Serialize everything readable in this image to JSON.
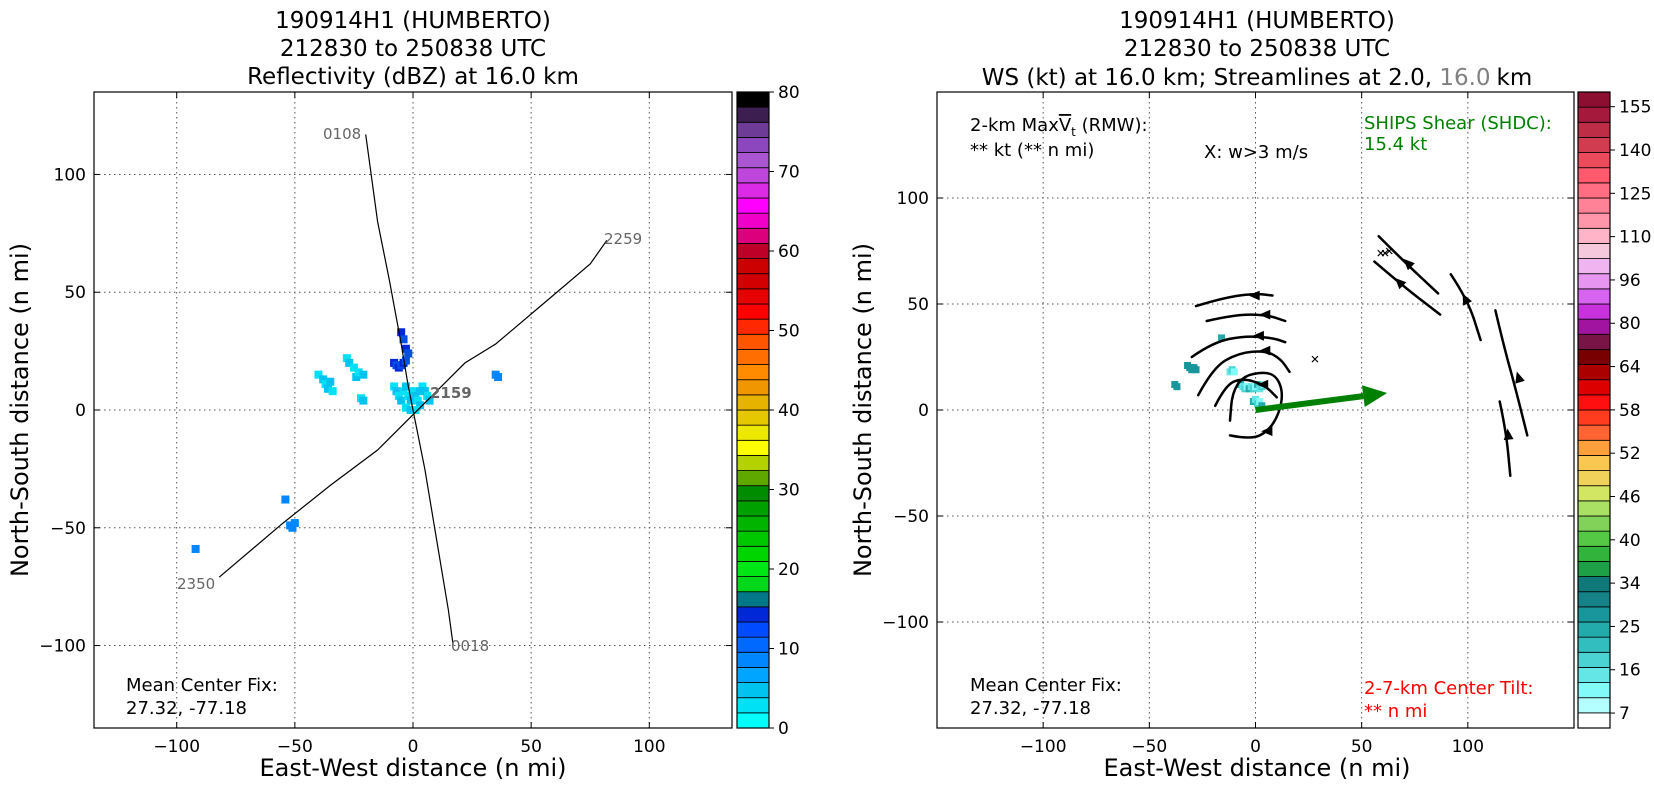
{
  "chart_data": [
    {
      "type": "heatmap",
      "title": [
        "190914H1 (HUMBERTO)",
        "212830 to 250838 UTC",
        "Reflectivity (dBZ) at 16.0 km"
      ],
      "xlabel": "East-West distance (n mi)",
      "ylabel": "North-South distance (n mi)",
      "xlim": [
        -135,
        135
      ],
      "ylim": [
        -135,
        135
      ],
      "xticks": [
        -100,
        -50,
        0,
        50,
        100
      ],
      "yticks": [
        -100,
        -50,
        0,
        50,
        100
      ],
      "xtick_labels": [
        "−100",
        "−50",
        "0",
        "50",
        "100"
      ],
      "ytick_labels": [
        "−100",
        "−50",
        "0",
        "50",
        "100"
      ],
      "grid": true,
      "colorbar": {
        "min": 0,
        "max": 80,
        "step": 2.5,
        "tick_values": [
          0,
          10,
          20,
          30,
          40,
          50,
          60,
          70,
          80
        ],
        "tick_labels": [
          "0",
          "10",
          "20",
          "30",
          "40",
          "50",
          "60",
          "70",
          "80"
        ],
        "colors": [
          "#00ffff",
          "#00e1f5",
          "#00c3f0",
          "#00a5ff",
          "#0087ff",
          "#0069ff",
          "#004bff",
          "#0028d7",
          "#007887",
          "#00d819",
          "#00e614",
          "#00d500",
          "#00c800",
          "#00b400",
          "#00a000",
          "#008c00",
          "#5fa800",
          "#b4d200",
          "#ffff00",
          "#ece800",
          "#e6c800",
          "#e6b400",
          "#f09600",
          "#ff8c00",
          "#ff6e00",
          "#ff5500",
          "#ff2800",
          "#ff0000",
          "#e60000",
          "#d20000",
          "#cd0000",
          "#be0028",
          "#dc007d",
          "#f000c8",
          "#ff00ff",
          "#dc2be6",
          "#be46dc",
          "#aa55d2",
          "#8c46be",
          "#6e3c96",
          "#3c1e50",
          "#000000"
        ]
      },
      "flight_track_labels": [
        "0108",
        "2259",
        "2159",
        "2350",
        "0018"
      ],
      "flight_tracks": [
        [
          [
            -20,
            117
          ],
          [
            -15,
            80
          ],
          [
            -10,
            55
          ],
          [
            -5,
            28
          ],
          [
            -2,
            10
          ],
          [
            0,
            0
          ],
          [
            5,
            -25
          ],
          [
            10,
            -55
          ],
          [
            15,
            -85
          ],
          [
            17,
            -100
          ]
        ],
        [
          [
            -82,
            -71
          ],
          [
            -55,
            -48
          ],
          [
            -35,
            -32
          ],
          [
            -15,
            -17
          ],
          [
            0,
            -2
          ],
          [
            8,
            6
          ],
          [
            22,
            20
          ],
          [
            35,
            28
          ],
          [
            55,
            45
          ],
          [
            75,
            62
          ],
          [
            82,
            72
          ]
        ]
      ],
      "reflectivity_points": [
        [
          -5,
          33
        ],
        [
          -4,
          30
        ],
        [
          -3,
          26
        ],
        [
          -2,
          24
        ],
        [
          -8,
          20
        ],
        [
          -7,
          19
        ],
        [
          -6,
          18
        ],
        [
          -5,
          19
        ],
        [
          -4,
          20
        ],
        [
          -3,
          21
        ],
        [
          -40,
          15
        ],
        [
          -38,
          13
        ],
        [
          -37,
          11
        ],
        [
          -36,
          9
        ],
        [
          -34,
          8
        ],
        [
          -35,
          12
        ],
        [
          -28,
          22
        ],
        [
          -27,
          20
        ],
        [
          -25,
          18
        ],
        [
          -24,
          14
        ],
        [
          -23,
          16
        ],
        [
          -21,
          15
        ],
        [
          -22,
          5
        ],
        [
          -21,
          4
        ],
        [
          -8,
          10
        ],
        [
          -7,
          8
        ],
        [
          -6,
          6
        ],
        [
          -5,
          4
        ],
        [
          -4,
          8
        ],
        [
          -3,
          10
        ],
        [
          -2,
          6
        ],
        [
          -1,
          4
        ],
        [
          0,
          8
        ],
        [
          1,
          6
        ],
        [
          2,
          4
        ],
        [
          3,
          2
        ],
        [
          4,
          10
        ],
        [
          5,
          8
        ],
        [
          6,
          6
        ],
        [
          7,
          4
        ],
        [
          -3,
          1
        ],
        [
          -1,
          0
        ],
        [
          1,
          0
        ],
        [
          3,
          8
        ],
        [
          35,
          15
        ],
        [
          36,
          14
        ],
        [
          -54,
          -38
        ],
        [
          -52,
          -49
        ],
        [
          -51,
          -50
        ],
        [
          -50,
          -48
        ],
        [
          -92,
          -59
        ]
      ],
      "annotations": [
        "Mean Center Fix:",
        "27.32, -77.18"
      ]
    },
    {
      "type": "heatmap",
      "title": [
        "190914H1 (HUMBERTO)",
        "212830 to 250838 UTC"
      ],
      "title_line3_parts": [
        "WS (kt) at 16.0 km; Streamlines at 2.0, ",
        "16.0",
        "km"
      ],
      "xlabel": "East-West distance (n mi)",
      "ylabel": "North-South distance (n mi)",
      "xlim": [
        -150,
        150
      ],
      "ylim": [
        -150,
        150
      ],
      "xticks": [
        -100,
        -50,
        0,
        50,
        100
      ],
      "yticks": [
        -100,
        -50,
        0,
        50,
        100
      ],
      "xtick_labels": [
        "−100",
        "−50",
        "0",
        "50",
        "100"
      ],
      "ytick_labels": [
        "−100",
        "−50",
        "0",
        "50",
        "100"
      ],
      "grid": true,
      "colorbar": {
        "min": 7,
        "max": 162,
        "tick_values": [
          7,
          16,
          25,
          34,
          40,
          46,
          52,
          58,
          64,
          80,
          96,
          110,
          125,
          140,
          155
        ],
        "tick_labels": [
          "7",
          "16",
          "25",
          "34",
          "40",
          "46",
          "52",
          "58",
          "64",
          "80",
          "96",
          "110",
          "125",
          "140",
          "155"
        ],
        "colors": [
          "#ffffff",
          "#b4ffff",
          "#82fafa",
          "#64e6e6",
          "#4bd2d2",
          "#32bebe",
          "#23aaaa",
          "#19969b",
          "#148287",
          "#0f7878",
          "#1ea046",
          "#32b43c",
          "#55c846",
          "#82d25a",
          "#aae164",
          "#d2e664",
          "#f0d25a",
          "#fac850",
          "#ffa03c",
          "#ff6432",
          "#ff3c1e",
          "#ff0f0f",
          "#dc0000",
          "#aa0000",
          "#780000",
          "#781446",
          "#a014a0",
          "#c832dc",
          "#d764f0",
          "#e696f0",
          "#f0b4f0",
          "#f5c8dc",
          "#ffb4c8",
          "#ff96aa",
          "#ff8296",
          "#ff6e82",
          "#ff5a6e",
          "#eb4b5a",
          "#d23c50",
          "#be2d46",
          "#a5193c",
          "#8c0f32"
        ]
      },
      "annotations": {
        "rmw_prefix": "2-km Max",
        "rmw_vt": "V",
        "rmw_sub": "t",
        "rmw_suffix": " (RMW):",
        "rmw_values": "** kt (** n mi)",
        "w_note": "X: w>3 m/s",
        "ships_label": "SHIPS Shear (SHDC):",
        "ships_value": "15.4 kt",
        "center_fix_label": "Mean Center Fix:",
        "center_fix_value": "27.32, -77.18",
        "tilt_label": "2-7-km Center Tilt:",
        "tilt_value": "** n mi",
        "colors": {
          "ships": "#008000",
          "tilt": "#ff0000",
          "gray": "#808080"
        }
      },
      "shear_vector": {
        "from": [
          0,
          0
        ],
        "to": [
          62,
          8
        ]
      },
      "w_markers": [
        [
          28,
          24
        ],
        [
          59,
          74
        ],
        [
          61,
          74
        ],
        [
          63,
          75
        ]
      ],
      "ws_points": [
        [
          -38,
          12
        ],
        [
          -37,
          11
        ],
        [
          -32,
          21
        ],
        [
          -31,
          20
        ],
        [
          -30,
          19
        ],
        [
          -29,
          20
        ],
        [
          -28,
          19
        ],
        [
          -16,
          34
        ],
        [
          -12,
          18
        ],
        [
          -11,
          19
        ],
        [
          -10,
          18
        ],
        [
          -7,
          12
        ],
        [
          -6,
          11
        ],
        [
          -5,
          10
        ],
        [
          -4,
          11
        ],
        [
          -3,
          10
        ],
        [
          -2,
          11
        ],
        [
          -1,
          10
        ],
        [
          0,
          11
        ],
        [
          1,
          12
        ],
        [
          2,
          10
        ],
        [
          3,
          11
        ],
        [
          4,
          12
        ],
        [
          -1,
          4
        ],
        [
          0,
          5
        ],
        [
          1,
          3
        ],
        [
          2,
          4
        ],
        [
          3,
          2
        ]
      ],
      "streamlines": [
        [
          [
            -28,
            49
          ],
          [
            -15,
            53
          ],
          [
            0,
            55
          ],
          [
            8,
            54
          ]
        ],
        [
          [
            -23,
            42
          ],
          [
            -10,
            45
          ],
          [
            5,
            45
          ],
          [
            14,
            42
          ]
        ],
        [
          [
            -30,
            25
          ],
          [
            -20,
            32
          ],
          [
            -5,
            35
          ],
          [
            8,
            34
          ],
          [
            14,
            32
          ]
        ],
        [
          [
            -27,
            7
          ],
          [
            -20,
            20
          ],
          [
            -8,
            27
          ],
          [
            5,
            28
          ],
          [
            12,
            24
          ],
          [
            16,
            18
          ]
        ],
        [
          [
            -19,
            2
          ],
          [
            -14,
            12
          ],
          [
            -6,
            15
          ],
          [
            4,
            12
          ],
          [
            10,
            6
          ]
        ],
        [
          [
            -12,
            -12
          ],
          [
            -2,
            -14
          ],
          [
            6,
            -10
          ],
          [
            11,
            -2
          ],
          [
            13,
            8
          ],
          [
            10,
            16
          ],
          [
            4,
            18
          ],
          [
            -6,
            16
          ],
          [
            -11,
            8
          ],
          [
            -12,
            -5
          ]
        ],
        [
          [
            58,
            82
          ],
          [
            70,
            70
          ],
          [
            86,
            55
          ]
        ],
        [
          [
            56,
            70
          ],
          [
            70,
            58
          ],
          [
            87,
            45
          ]
        ],
        [
          [
            92,
            64
          ],
          [
            100,
            52
          ],
          [
            106,
            33
          ]
        ],
        [
          [
            113,
            47
          ],
          [
            117,
            30
          ],
          [
            122,
            12
          ],
          [
            128,
            -12
          ]
        ],
        [
          [
            115,
            4
          ],
          [
            118,
            -10
          ],
          [
            120,
            -31
          ]
        ]
      ],
      "streamline_arrows": [
        [
          0,
          54,
          -1,
          0
        ],
        [
          5,
          45,
          -1,
          0
        ],
        [
          2,
          35,
          -1,
          0
        ],
        [
          5,
          28,
          -1,
          0
        ],
        [
          4,
          12,
          -1,
          0
        ],
        [
          6,
          -10,
          -1,
          0
        ],
        [
          72,
          69,
          -1,
          1
        ],
        [
          68,
          60,
          -1,
          1
        ],
        [
          99,
          52,
          -0.5,
          1
        ],
        [
          124,
          15,
          -0.3,
          1
        ],
        [
          119,
          -12,
          -0.1,
          1
        ]
      ]
    }
  ]
}
